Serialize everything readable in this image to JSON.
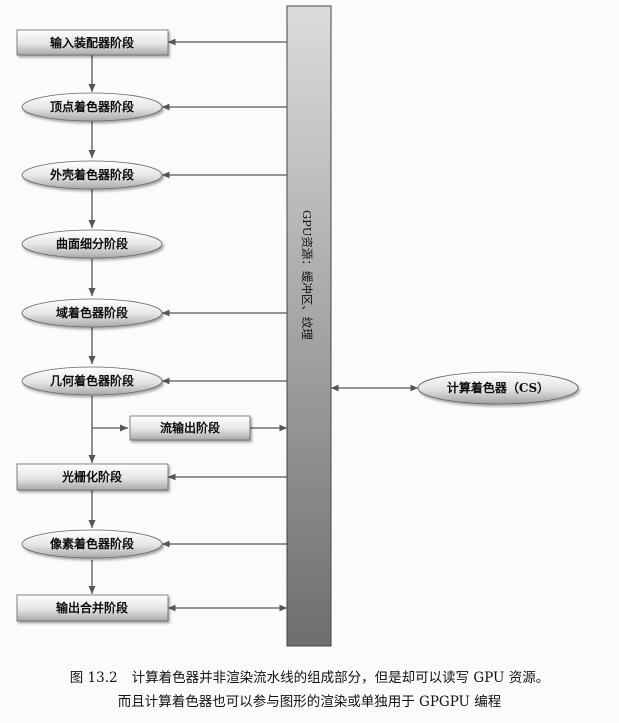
{
  "stages": [
    {
      "id": "ia",
      "label": "输入装配器阶段",
      "shape": "rect"
    },
    {
      "id": "vs",
      "label": "顶点着色器阶段",
      "shape": "ellipse"
    },
    {
      "id": "hs",
      "label": "外壳着色器阶段",
      "shape": "ellipse"
    },
    {
      "id": "ts",
      "label": "曲面细分阶段",
      "shape": "ellipse"
    },
    {
      "id": "ds",
      "label": "域着色器阶段",
      "shape": "ellipse"
    },
    {
      "id": "gs",
      "label": "几何着色器阶段",
      "shape": "ellipse"
    },
    {
      "id": "rs",
      "label": "光栅化阶段",
      "shape": "rect"
    },
    {
      "id": "ps",
      "label": "像素着色器阶段",
      "shape": "ellipse"
    },
    {
      "id": "om",
      "label": "输出合并阶段",
      "shape": "rect"
    }
  ],
  "stream_output": {
    "label": "流输出阶段"
  },
  "resources": {
    "label": "GPU资源：缓冲区、纹理"
  },
  "compute_shader": {
    "label": "计算着色器（CS）"
  },
  "caption": {
    "figure_number": "图 13.2",
    "line1": "计算着色器并非渲染流水线的组成部分，但是却可以读写 GPU 资源。",
    "line2": "而且计算着色器也可以参与图形的渲染或单独用于 GPGPU 编程"
  },
  "colors": {
    "node_fill_light": "#ffffff",
    "node_fill_dark": "#a8a8a8",
    "arrow": "#555555",
    "bar_top": "#dcdcdc",
    "bar_bottom": "#6e6e6e"
  }
}
